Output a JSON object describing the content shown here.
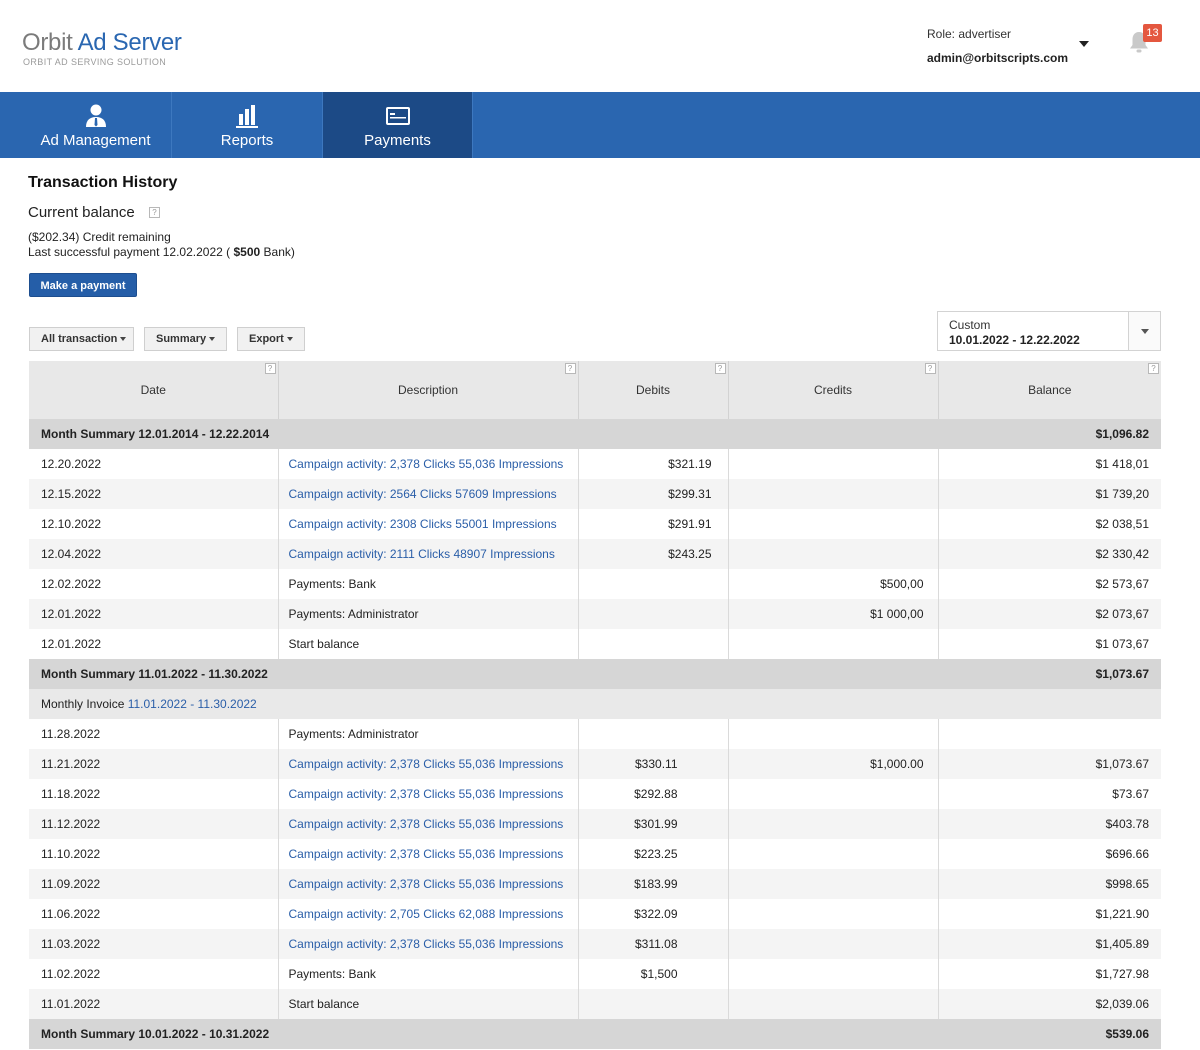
{
  "app": {
    "logo_part1": "Orbit",
    "logo_part2": "Ad Server",
    "logo_subtitle": "ORBIT AD SERVING SOLUTION",
    "brand_color": "#2a66b0"
  },
  "user": {
    "role": "Role: advertiser",
    "email": "admin@orbitscripts.com",
    "notifications_count": "13",
    "bell_icon": "bell-icon",
    "menu_icon": "caret-down-icon"
  },
  "nav": [
    {
      "label": "Ad Management",
      "icon": "user-icon"
    },
    {
      "label": "Reports",
      "icon": "bar-chart-icon"
    },
    {
      "label": "Payments",
      "icon": "card-icon"
    }
  ],
  "page": {
    "title": "Transaction History",
    "balance_label": "Current balance",
    "credit_remaining": "($202.34) Credit remaining",
    "last_payment_prefix": "Last successful payment 12.02.2022 (",
    "last_payment_amount": "$500",
    "last_payment_suffix": "Bank)",
    "make_payment": "Make a payment"
  },
  "filters": {
    "transactions": "All transaction",
    "summary": "Summary",
    "export": "Export",
    "range_label": "Custom",
    "range_value": "10.01.2022 - 12.22.2022"
  },
  "table": {
    "headers": [
      "Date",
      "Description",
      "Debits",
      "Credits",
      "Balance"
    ],
    "help_glyph": "?",
    "sections": [
      {
        "summary": "Month Summary 12.01.2014 - 12.22.2014",
        "summary_value": "$1,096.82",
        "rows": [
          {
            "date": "12.20.2022",
            "desc": "Campaign activity: 2,378 Clicks 55,036 Impressions",
            "link": true,
            "debit": "$321.19",
            "credit": "",
            "balance": "$1 418,01"
          },
          {
            "date": "12.15.2022",
            "desc": "Campaign activity: 2564 Clicks 57609 Impressions",
            "link": true,
            "debit": "$299.31",
            "credit": "",
            "balance": "$1 739,20"
          },
          {
            "date": "12.10.2022",
            "desc": "Campaign activity: 2308 Clicks 55001 Impressions",
            "link": true,
            "debit": "$291.91",
            "credit": "",
            "balance": "$2 038,51"
          },
          {
            "date": "12.04.2022",
            "desc": "Campaign activity: 2111 Clicks 48907 Impressions",
            "link": true,
            "debit": "$243.25",
            "credit": "",
            "balance": "$2 330,42"
          },
          {
            "date": "12.02.2022",
            "desc": "Payments: Bank",
            "link": false,
            "debit": "",
            "credit": "$500,00",
            "balance": "$2 573,67"
          },
          {
            "date": "12.01.2022",
            "desc": "Payments: Administrator",
            "link": false,
            "debit": "",
            "credit": "$1 000,00",
            "balance": "$2 073,67"
          },
          {
            "date": "12.01.2022",
            "desc": "Start balance",
            "link": false,
            "debit": "",
            "credit": "",
            "balance": "$1 073,67"
          }
        ]
      },
      {
        "summary": "Month Summary 11.01.2022 - 11.30.2022",
        "summary_value": "$1,073.67",
        "invoice_label": "Monthly Invoice",
        "invoice_link": "11.01.2022 - 11.30.2022",
        "rows": [
          {
            "date": "11.28.2022",
            "desc": "Payments: Administrator",
            "link": false,
            "debit": "",
            "credit": "",
            "balance": ""
          },
          {
            "date": "11.21.2022",
            "desc": "Campaign activity: 2,378 Clicks 55,036 Impressions",
            "link": true,
            "debit": "$330.11",
            "credit": "$1,000.00",
            "balance": "$1,073.67"
          },
          {
            "date": "11.18.2022",
            "desc": "Campaign activity: 2,378 Clicks 55,036 Impressions",
            "link": true,
            "debit": "$292.88",
            "credit": "",
            "balance": "$73.67"
          },
          {
            "date": "11.12.2022",
            "desc": "Campaign activity: 2,378 Clicks 55,036 Impressions",
            "link": true,
            "debit": "$301.99",
            "credit": "",
            "balance": "$403.78"
          },
          {
            "date": "11.10.2022",
            "desc": "Campaign activity: 2,378 Clicks 55,036 Impressions",
            "link": true,
            "debit": "$223.25",
            "credit": "",
            "balance": "$696.66"
          },
          {
            "date": "11.09.2022",
            "desc": "Campaign activity: 2,378 Clicks 55,036 Impressions",
            "link": true,
            "debit": "$183.99",
            "credit": "",
            "balance": "$998.65"
          },
          {
            "date": "11.06.2022",
            "desc": "Campaign activity: 2,705 Clicks 62,088 Impressions",
            "link": true,
            "debit": "$322.09",
            "credit": "",
            "balance": "$1,221.90"
          },
          {
            "date": "11.03.2022",
            "desc": "Campaign activity: 2,378 Clicks 55,036 Impressions",
            "link": true,
            "debit": "$311.08",
            "credit": "",
            "balance": "$1,405.89"
          },
          {
            "date": "11.02.2022",
            "desc": "Payments: Bank",
            "link": false,
            "debit": "$1,500",
            "credit": "",
            "balance": "$1,727.98"
          },
          {
            "date": "11.01.2022",
            "desc": "Start balance",
            "link": false,
            "debit": "",
            "credit": "",
            "balance": "$2,039.06"
          }
        ]
      },
      {
        "summary": "Month Summary 10.01.2022 - 10.31.2022",
        "summary_value": "$539.06",
        "rows": []
      }
    ]
  }
}
